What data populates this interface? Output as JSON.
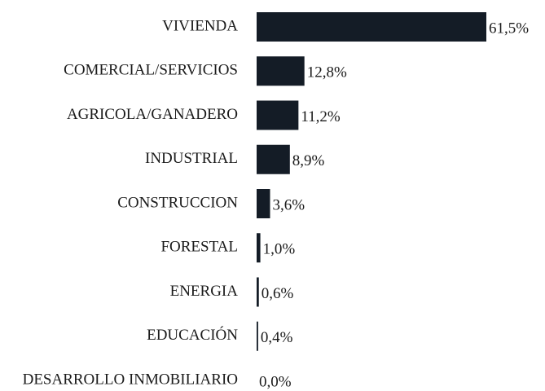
{
  "chart_data": {
    "type": "bar",
    "orientation": "horizontal",
    "categories": [
      "VIVIENDA",
      "COMERCIAL/SERVICIOS",
      "AGRICOLA/GANADERO",
      "INDUSTRIAL",
      "CONSTRUCCION",
      "FORESTAL",
      "ENERGIA",
      "EDUCACIÓN",
      "DESARROLLO INMOBILIARIO"
    ],
    "values": [
      61.5,
      12.8,
      11.2,
      8.9,
      3.6,
      1.0,
      0.6,
      0.4,
      0.0
    ],
    "value_labels": [
      "61,5%",
      "12,8%",
      "11,2%",
      "8,9%",
      "3,6%",
      "1,0%",
      "0,6%",
      "0,4%",
      "0,0%"
    ],
    "color": "#141c26"
  }
}
